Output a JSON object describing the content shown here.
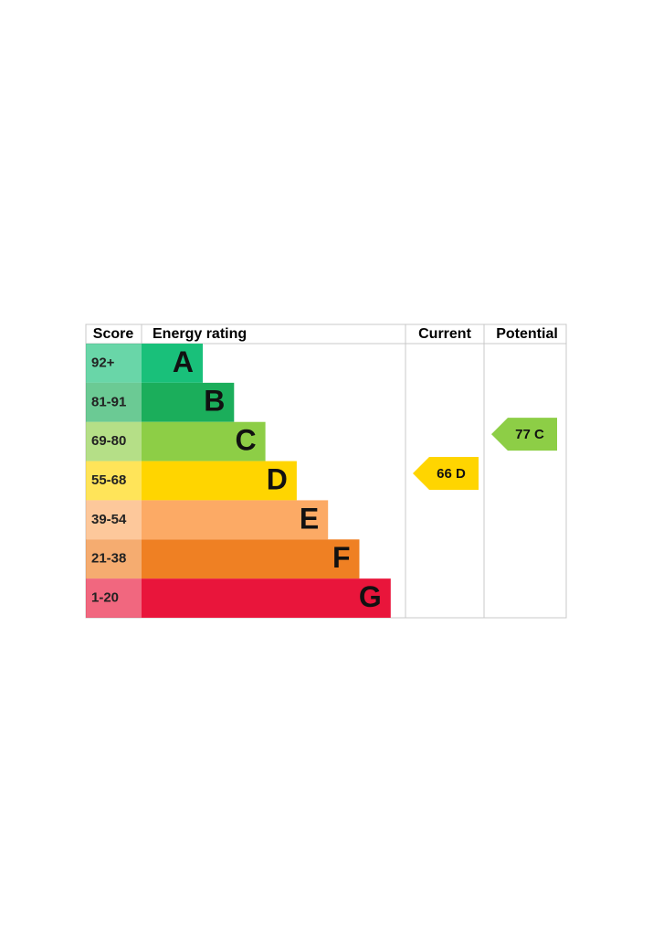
{
  "headers": {
    "score": "Score",
    "rating": "Energy rating",
    "current": "Current",
    "potential": "Potential"
  },
  "bands": [
    {
      "score": "92+",
      "letter": "A",
      "color": "#19c07a"
    },
    {
      "score": "81-91",
      "letter": "B",
      "color": "#1bae5b"
    },
    {
      "score": "69-80",
      "letter": "C",
      "color": "#8dce46"
    },
    {
      "score": "55-68",
      "letter": "D",
      "color": "#ffd500"
    },
    {
      "score": "39-54",
      "letter": "E",
      "color": "#fcaa65"
    },
    {
      "score": "21-38",
      "letter": "F",
      "color": "#ef8023"
    },
    {
      "score": "1-20",
      "letter": "G",
      "color": "#e9153b"
    }
  ],
  "current": "66 D",
  "potential": "77 C"
}
